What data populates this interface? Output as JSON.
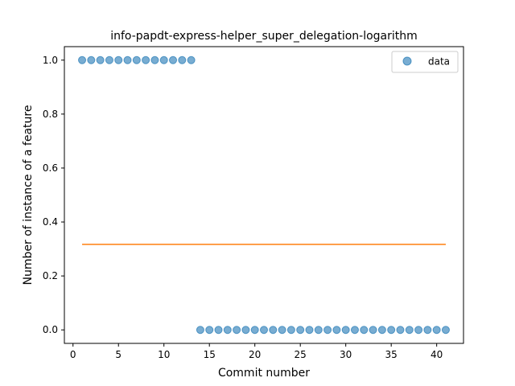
{
  "chart_data": {
    "type": "scatter",
    "title": "info-papdt-express-helper_super_delegation-logarithm",
    "xlabel": "Commit number",
    "ylabel": "Number of instance of a feature",
    "xlim": [
      -0.0,
      43.0
    ],
    "ylim": [
      -0.05,
      1.05
    ],
    "x_ticks": [
      0,
      5,
      10,
      15,
      20,
      25,
      30,
      35,
      40
    ],
    "y_ticks": [
      0.0,
      0.2,
      0.4,
      0.6,
      0.8,
      1.0
    ],
    "x_tick_labels": [
      "0",
      "5",
      "10",
      "15",
      "20",
      "25",
      "30",
      "35",
      "40"
    ],
    "y_tick_labels": [
      "0.0",
      "0.2",
      "0.4",
      "0.6",
      "0.8",
      "1.0"
    ],
    "legend_position": "top-right",
    "series": [
      {
        "name": "data",
        "kind": "scatter",
        "color": "#1f77b4",
        "x": [
          1,
          2,
          3,
          4,
          5,
          6,
          7,
          8,
          9,
          10,
          11,
          12,
          13,
          14,
          15,
          16,
          17,
          18,
          19,
          20,
          21,
          22,
          23,
          24,
          25,
          26,
          27,
          28,
          29,
          30,
          31,
          32,
          33,
          34,
          35,
          36,
          37,
          38,
          39,
          40,
          41
        ],
        "y": [
          1,
          1,
          1,
          1,
          1,
          1,
          1,
          1,
          1,
          1,
          1,
          1,
          1,
          0,
          0,
          0,
          0,
          0,
          0,
          0,
          0,
          0,
          0,
          0,
          0,
          0,
          0,
          0,
          0,
          0,
          0,
          0,
          0,
          0,
          0,
          0,
          0,
          0,
          0,
          0,
          0
        ]
      },
      {
        "kind": "line",
        "color": "#ff7f0e",
        "x": [
          1,
          41
        ],
        "y": [
          0.317,
          0.317
        ]
      }
    ]
  }
}
